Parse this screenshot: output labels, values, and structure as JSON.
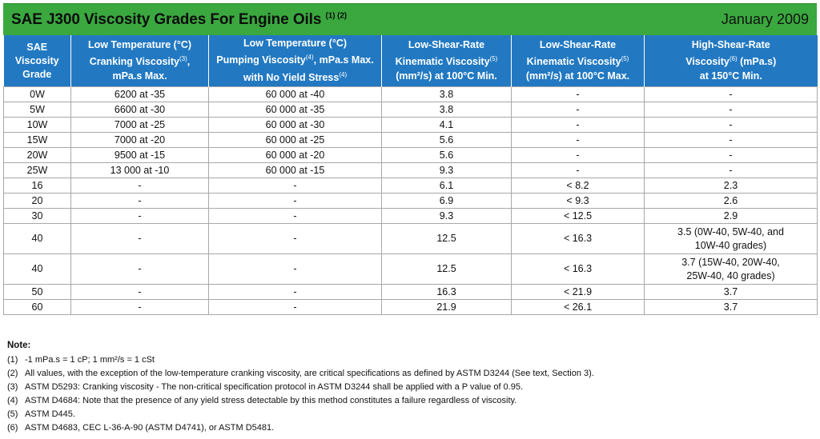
{
  "header": {
    "title": "SAE J300 Viscosity Grades For Engine Oils",
    "title_refs": "(1) (2)",
    "date": "January 2009"
  },
  "table": {
    "columns": [
      {
        "lines": [
          "SAE",
          "Viscosity",
          "Grade"
        ]
      },
      {
        "lines": [
          "Low Temperature (°C)",
          "Cranking Viscosity",
          ", ",
          "mPa.s Max."
        ],
        "refs": [
          "(3)"
        ]
      },
      {
        "lines": [
          "Low Temperature (°C)",
          "Pumping Viscosity",
          ", mPa.s Max.",
          "with No Yield Stress"
        ],
        "refs": [
          "(4)",
          "(4)"
        ]
      },
      {
        "lines": [
          "Low-Shear-Rate",
          "Kinematic Viscosity",
          "(mm²/s) at 100°C Min."
        ],
        "refs": [
          "(5)"
        ]
      },
      {
        "lines": [
          "Low-Shear-Rate",
          "Kinematic Viscosity",
          "(mm²/s) at 100°C Max."
        ],
        "refs": [
          "(5)"
        ]
      },
      {
        "lines": [
          "High-Shear-Rate",
          "Viscosity",
          " (mPa.s)",
          "at 150°C Min."
        ],
        "refs": [
          "(6)"
        ]
      }
    ],
    "rows": [
      {
        "cells": [
          "0W",
          "6200 at -35",
          "60 000 at -40",
          "3.8",
          "-",
          "-"
        ]
      },
      {
        "cells": [
          "5W",
          "6600 at -30",
          "60 000 at -35",
          "3.8",
          "-",
          "-"
        ]
      },
      {
        "cells": [
          "10W",
          "7000 at -25",
          "60 000 at -30",
          "4.1",
          "-",
          "-"
        ]
      },
      {
        "cells": [
          "15W",
          "7000 at -20",
          "60 000 at -25",
          "5.6",
          "-",
          "-"
        ]
      },
      {
        "cells": [
          "20W",
          "9500 at -15",
          "60 000 at -20",
          "5.6",
          "-",
          "-"
        ]
      },
      {
        "cells": [
          "25W",
          "13 000 at -10",
          "60 000 at -15",
          "9.3",
          "-",
          "-"
        ]
      },
      {
        "cells": [
          "16",
          "-",
          "-",
          "6.1",
          "< 8.2",
          "2.3"
        ]
      },
      {
        "cells": [
          "20",
          "-",
          "-",
          "6.9",
          "< 9.3",
          "2.6"
        ]
      },
      {
        "cells": [
          "30",
          "-",
          "-",
          "9.3",
          "< 12.5",
          "2.9"
        ]
      },
      {
        "cells": [
          "40",
          "-",
          "-",
          "12.5",
          "< 16.3",
          "3.5 (0W-40, 5W-40, and 10W-40 grades)"
        ]
      },
      {
        "cells": [
          "40",
          "-",
          "-",
          "12.5",
          "< 16.3",
          "3.7 (15W-40, 20W-40, 25W-40, 40 grades)"
        ]
      },
      {
        "cells": [
          "50",
          "-",
          "-",
          "16.3",
          "< 21.9",
          "3.7"
        ]
      },
      {
        "cells": [
          "60",
          "-",
          "-",
          "21.9",
          "< 26.1",
          "3.7"
        ]
      }
    ]
  },
  "notes": {
    "heading": "Note:",
    "items": [
      {
        "num": "(1)",
        "text": "-1 mPa.s = 1 cP; 1 mm²/s = 1 cSt"
      },
      {
        "num": "(2)",
        "text": "All values, with the exception of the low-temperature cranking viscosity, are critical specifications as defined by ASTM D3244 (See text, Section 3)."
      },
      {
        "num": "(3)",
        "text": "ASTM D5293: Cranking viscosity - The non-critical specification protocol in ASTM D3244 shall be applied with a P value of 0.95."
      },
      {
        "num": "(4)",
        "text": "ASTM D4684: Note that the presence of any yield stress detectable by this method constitutes a failure regardless of viscosity."
      },
      {
        "num": "(5)",
        "text": "ASTM D445."
      },
      {
        "num": "(6)",
        "text": "ASTM D4683, CEC L-36-A-90 (ASTM D4741), or ASTM D5481."
      }
    ]
  }
}
